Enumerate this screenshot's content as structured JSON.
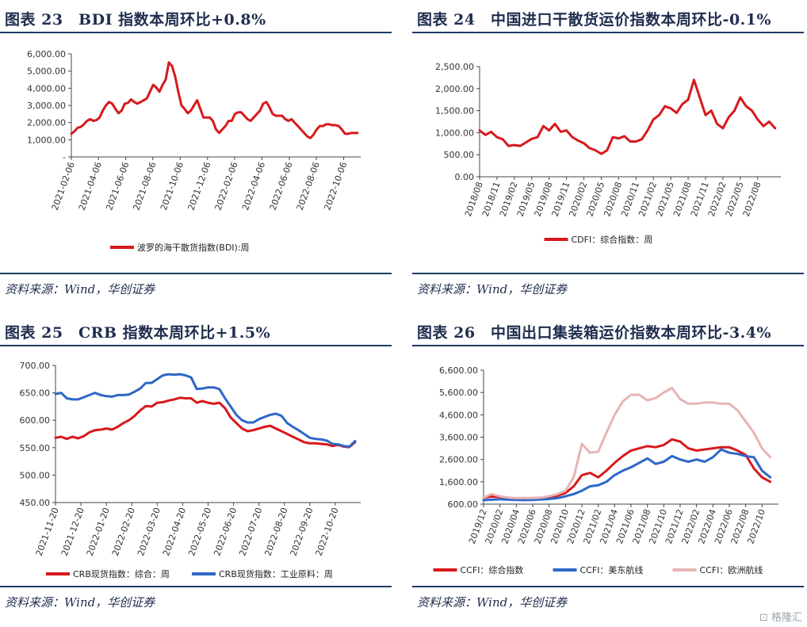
{
  "panels": [
    {
      "title": "图表 23　BDI 指数本周环比+0.8%",
      "source": "资料来源：Wind，华创证券",
      "chart_data": {
        "type": "line",
        "ylim": [
          0,
          6000
        ],
        "yticks": [
          0,
          1000,
          2000,
          3000,
          4000,
          5000,
          6000
        ],
        "ytick_labels": [
          "-",
          "1,000.00",
          "2,000.00",
          "3,000.00",
          "4,000.00",
          "5,000.00",
          "6,000.00"
        ],
        "xlim": [
          0,
          92
        ],
        "xticks": [
          0,
          8.6,
          17.3,
          25.9,
          34.6,
          43.3,
          51.9,
          60.6,
          69.3,
          77.9,
          86.6
        ],
        "xtick_labels": [
          "2021-02-06",
          "2021-04-06",
          "2021-06-06",
          "2021-08-06",
          "2021-10-06",
          "2021-12-06",
          "2022-02-06",
          "2022-04-06",
          "2022-06-06",
          "2022-08-06",
          "2022-10-06"
        ],
        "grid": false,
        "legend_position": "bottom",
        "series": [
          {
            "name": "波罗的海干散货指数(BDI):周",
            "color": "#d7191c",
            "x": [
              0,
              1,
              2,
              3,
              4,
              5,
              6,
              7,
              8,
              9,
              10,
              11,
              12,
              13,
              14,
              15,
              16,
              17,
              18,
              19,
              20,
              21,
              22,
              23,
              24,
              25,
              26,
              27,
              28,
              29,
              30,
              31,
              32,
              33,
              34,
              35,
              36,
              37,
              38,
              39,
              40,
              41,
              42,
              43,
              44,
              45,
              46,
              47,
              48,
              49,
              50,
              51,
              52,
              53,
              54,
              55,
              56,
              57,
              58,
              59,
              60,
              61,
              62,
              63,
              64,
              65,
              66,
              67,
              68,
              69,
              70,
              71,
              72,
              73,
              74,
              75,
              76,
              77,
              78,
              79,
              80,
              81,
              82,
              83,
              84,
              85,
              86,
              87,
              88,
              89,
              90,
              91
            ],
            "values": [
              1350,
              1500,
              1700,
              1750,
              1900,
              2100,
              2200,
              2100,
              2150,
              2300,
              2700,
              3000,
              3200,
              3100,
              2800,
              2550,
              2700,
              3100,
              3150,
              3350,
              3200,
              3100,
              3200,
              3300,
              3400,
              3800,
              4200,
              4050,
              3800,
              4200,
              4500,
              5500,
              5300,
              4700,
              3800,
              3000,
              2800,
              2550,
              2700,
              3000,
              3300,
              2800,
              2300,
              2300,
              2300,
              2100,
              1600,
              1400,
              1600,
              1800,
              2100,
              2100,
              2500,
              2600,
              2600,
              2400,
              2200,
              2100,
              2300,
              2500,
              2700,
              3100,
              3200,
              2900,
              2500,
              2400,
              2400,
              2400,
              2200,
              2100,
              2200,
              2000,
              1800,
              1600,
              1400,
              1200,
              1100,
              1300,
              1600,
              1800,
              1800,
              1900,
              1900,
              1850,
              1850,
              1800,
              1600,
              1350,
              1350,
              1400,
              1400,
              1400
            ]
          }
        ]
      }
    },
    {
      "title": "图表 24　中国进口干散货运价指数本周环比-0.1%",
      "source": "资料来源：Wind，华创证券",
      "chart_data": {
        "type": "line",
        "ylim": [
          0,
          2500
        ],
        "yticks": [
          0,
          500,
          1000,
          1500,
          2000,
          2500
        ],
        "ytick_labels": [
          "0.00",
          "500.00",
          "1,000.00",
          "1,500.00",
          "2,000.00",
          "2,500.00"
        ],
        "xlim": [
          0,
          52
        ],
        "xticks": [
          0,
          3,
          6,
          9,
          12,
          15,
          18,
          21,
          24,
          27,
          30,
          33,
          36,
          39,
          42,
          45,
          48
        ],
        "xtick_labels": [
          "2018/08",
          "2018/11",
          "2019/02",
          "2019/05",
          "2019/08",
          "2019/11",
          "2020/02",
          "2020/05",
          "2020/08",
          "2020/11",
          "2021/02",
          "2021/05",
          "2021/08",
          "2021/11",
          "2022/02",
          "2022/05",
          "2022/08"
        ],
        "grid": false,
        "legend_position": "bottom",
        "series": [
          {
            "name": "CDFI：综合指数：周",
            "color": "#d7191c",
            "x": [
              0,
              1,
              2,
              3,
              4,
              5,
              6,
              7,
              8,
              9,
              10,
              11,
              12,
              13,
              14,
              15,
              16,
              17,
              18,
              19,
              20,
              21,
              22,
              23,
              24,
              25,
              26,
              27,
              28,
              29,
              30,
              31,
              32,
              33,
              34,
              35,
              36,
              37,
              38,
              39,
              40,
              41,
              42,
              43,
              44,
              45,
              46,
              47,
              48,
              49,
              50,
              51
            ],
            "values": [
              1050,
              950,
              1020,
              900,
              850,
              700,
              720,
              700,
              780,
              860,
              900,
              1150,
              1050,
              1200,
              1020,
              1050,
              900,
              820,
              760,
              650,
              600,
              520,
              600,
              900,
              870,
              920,
              800,
              800,
              850,
              1050,
              1300,
              1400,
              1600,
              1550,
              1450,
              1650,
              1750,
              2200,
              1800,
              1400,
              1500,
              1200,
              1100,
              1350,
              1500,
              1800,
              1600,
              1500,
              1300,
              1150,
              1250,
              1100
            ]
          }
        ]
      }
    },
    {
      "title": "图表 25　CRB 指数本周环比+1.5%",
      "source": "资料来源：Wind，华创证券",
      "chart_data": {
        "type": "line",
        "ylim": [
          450,
          700
        ],
        "yticks": [
          450,
          500,
          550,
          600,
          650,
          700
        ],
        "ytick_labels": [
          "450.00",
          "500.00",
          "550.00",
          "600.00",
          "650.00",
          "700.00"
        ],
        "xlim": [
          0,
          54
        ],
        "xticks": [
          0,
          4.5,
          9,
          13.5,
          18,
          22.5,
          27,
          31.5,
          36,
          40.5,
          45,
          49.5
        ],
        "xtick_labels": [
          "2021-11-20",
          "2021-12-20",
          "2022-01-20",
          "2022-02-20",
          "2022-03-20",
          "2022-04-20",
          "2022-05-20",
          "2022-06-20",
          "2022-07-20",
          "2022-08-20",
          "2022-09-20",
          "2022-10-20"
        ],
        "grid": false,
        "legend_position": "bottom",
        "series": [
          {
            "name": "CRB现货指数：综合：周",
            "color": "#d7191c",
            "x": [
              0,
              1,
              2,
              3,
              4,
              5,
              6,
              7,
              8,
              9,
              10,
              11,
              12,
              13,
              14,
              15,
              16,
              17,
              18,
              19,
              20,
              21,
              22,
              23,
              24,
              25,
              26,
              27,
              28,
              29,
              30,
              31,
              32,
              33,
              34,
              35,
              36,
              37,
              38,
              39,
              40,
              41,
              42,
              43,
              44,
              45,
              46,
              47,
              48,
              49,
              50,
              51,
              52,
              53
            ],
            "values": [
              568,
              570,
              566,
              570,
              567,
              571,
              578,
              582,
              583,
              585,
              583,
              588,
              595,
              600,
              608,
              618,
              626,
              625,
              632,
              633,
              636,
              638,
              641,
              640,
              640,
              632,
              635,
              632,
              630,
              632,
              622,
              605,
              595,
              585,
              580,
              582,
              585,
              588,
              590,
              585,
              580,
              575,
              570,
              565,
              560,
              558,
              558,
              557,
              556,
              553,
              555,
              552,
              551,
              560
            ]
          },
          {
            "name": "CRB现货指数：工业原料：周",
            "color": "#2e67c7",
            "x": [
              0,
              1,
              2,
              3,
              4,
              5,
              6,
              7,
              8,
              9,
              10,
              11,
              12,
              13,
              14,
              15,
              16,
              17,
              18,
              19,
              20,
              21,
              22,
              23,
              24,
              25,
              26,
              27,
              28,
              29,
              30,
              31,
              32,
              33,
              34,
              35,
              36,
              37,
              38,
              39,
              40,
              41,
              42,
              43,
              44,
              45,
              46,
              47,
              48,
              49,
              50,
              51,
              52,
              53
            ],
            "values": [
              648,
              650,
              640,
              638,
              638,
              642,
              646,
              650,
              646,
              644,
              643,
              646,
              646,
              647,
              652,
              658,
              668,
              668,
              675,
              682,
              684,
              683,
              684,
              682,
              678,
              657,
              658,
              660,
              660,
              657,
              640,
              625,
              610,
              600,
              596,
              596,
              602,
              606,
              610,
              612,
              608,
              595,
              588,
              582,
              575,
              568,
              566,
              565,
              563,
              557,
              556,
              553,
              552,
              562
            ]
          }
        ]
      }
    },
    {
      "title": "图表 26　中国出口集装箱运价指数本周环比-3.4%",
      "source": "资料来源：Wind，华创证券",
      "chart_data": {
        "type": "line",
        "ylim": [
          600,
          6600
        ],
        "yticks": [
          600,
          1600,
          2600,
          3600,
          4600,
          5600,
          6600
        ],
        "ytick_labels": [
          "600.00",
          "1,600.00",
          "2,600.00",
          "3,600.00",
          "4,600.00",
          "5,600.00",
          "6,600.00"
        ],
        "xlim": [
          0,
          36
        ],
        "xticks": [
          0,
          2,
          4,
          6,
          8,
          10,
          12,
          14,
          16,
          18,
          20,
          22,
          24,
          26,
          28,
          30,
          32,
          34
        ],
        "xtick_labels": [
          "2019/12",
          "2020/02",
          "2020/04",
          "2020/06",
          "2020/08",
          "2020/10",
          "2020/12",
          "2021/02",
          "2021/04",
          "2021/06",
          "2021/08",
          "2021/10",
          "2021/12",
          "2022/02",
          "2022/04",
          "2022/06",
          "2022/08",
          "2022/10"
        ],
        "grid": false,
        "legend_position": "bottom",
        "series": [
          {
            "name": "CCFI：综合指数",
            "color": "#d7191c",
            "x": [
              0,
              1,
              2,
              3,
              4,
              5,
              6,
              7,
              8,
              9,
              10,
              11,
              12,
              13,
              14,
              15,
              16,
              17,
              18,
              19,
              20,
              21,
              22,
              23,
              24,
              25,
              26,
              27,
              28,
              29,
              30,
              31,
              32,
              33,
              34,
              35
            ],
            "values": [
              900,
              940,
              930,
              880,
              860,
              850,
              870,
              880,
              900,
              980,
              1100,
              1400,
              1900,
              2000,
              1800,
              2100,
              2450,
              2750,
              3000,
              3100,
              3200,
              3150,
              3250,
              3500,
              3400,
              3100,
              3000,
              3050,
              3100,
              3150,
              3150,
              3000,
              2800,
              2200,
              1800,
              1600
            ]
          },
          {
            "name": "CCFI：美东航线",
            "color": "#2e67c7",
            "x": [
              0,
              1,
              2,
              3,
              4,
              5,
              6,
              7,
              8,
              9,
              10,
              11,
              12,
              13,
              14,
              15,
              16,
              17,
              18,
              19,
              20,
              21,
              22,
              23,
              24,
              25,
              26,
              27,
              28,
              29,
              30,
              31,
              32,
              33,
              34,
              35
            ],
            "values": [
              780,
              800,
              820,
              800,
              790,
              780,
              790,
              810,
              830,
              870,
              950,
              1050,
              1200,
              1400,
              1450,
              1600,
              1900,
              2100,
              2250,
              2450,
              2650,
              2400,
              2500,
              2750,
              2600,
              2500,
              2600,
              2500,
              2700,
              3050,
              2900,
              2850,
              2750,
              2700,
              2100,
              1800
            ]
          },
          {
            "name": "CCFI：欧洲航线",
            "color": "#e8b4b4",
            "x": [
              0,
              1,
              2,
              3,
              4,
              5,
              6,
              7,
              8,
              9,
              10,
              11,
              12,
              13,
              14,
              15,
              16,
              17,
              18,
              19,
              20,
              21,
              22,
              23,
              24,
              25,
              26,
              27,
              28,
              29,
              30,
              31,
              32,
              33,
              34,
              35
            ],
            "values": [
              900,
              1050,
              950,
              900,
              870,
              880,
              870,
              900,
              950,
              1050,
              1200,
              1800,
              3300,
              2900,
              2950,
              3800,
              4600,
              5200,
              5500,
              5500,
              5250,
              5350,
              5600,
              5800,
              5300,
              5100,
              5100,
              5150,
              5150,
              5100,
              5100,
              4800,
              4300,
              3800,
              3100,
              2700
            ]
          }
        ]
      }
    }
  ],
  "watermark": "格隆汇"
}
